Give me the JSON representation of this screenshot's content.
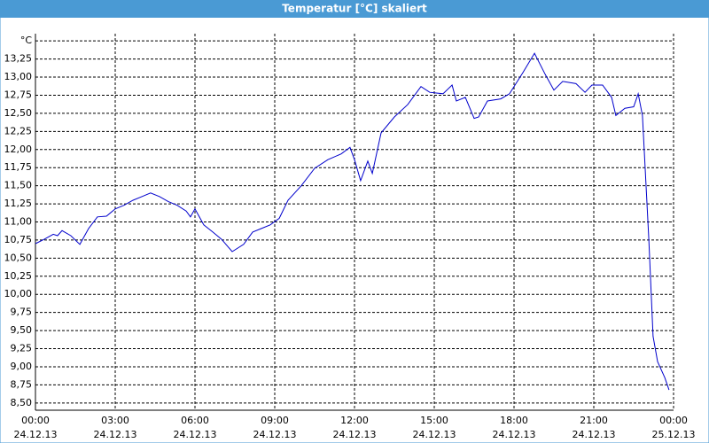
{
  "chart_data": {
    "type": "line",
    "title": "Temperatur [°C] skaliert",
    "xlim": [
      0,
      24
    ],
    "ylim": [
      8.4,
      13.6
    ],
    "xticks": [
      {
        "value": 0,
        "label": "00:00",
        "date": "24.12.13"
      },
      {
        "value": 3,
        "label": "03:00",
        "date": "24.12.13"
      },
      {
        "value": 6,
        "label": "06:00",
        "date": "24.12.13"
      },
      {
        "value": 9,
        "label": "09:00",
        "date": "24.12.13"
      },
      {
        "value": 12,
        "label": "12:00",
        "date": "24.12.13"
      },
      {
        "value": 15,
        "label": "15:00",
        "date": "24.12.13"
      },
      {
        "value": 18,
        "label": "18:00",
        "date": "24.12.13"
      },
      {
        "value": 21,
        "label": "21:00",
        "date": "24.12.13"
      },
      {
        "value": 24,
        "label": "00:00",
        "date": "25.12.13"
      }
    ],
    "yticks": [
      {
        "value": 8.5,
        "label": "8,50"
      },
      {
        "value": 8.75,
        "label": "8,75"
      },
      {
        "value": 9,
        "label": "9,00"
      },
      {
        "value": 9.25,
        "label": "9,25"
      },
      {
        "value": 9.5,
        "label": "9,50"
      },
      {
        "value": 9.75,
        "label": "9,75"
      },
      {
        "value": 10,
        "label": "10,00"
      },
      {
        "value": 10.25,
        "label": "10,25"
      },
      {
        "value": 10.5,
        "label": "10,50"
      },
      {
        "value": 10.75,
        "label": "10,75"
      },
      {
        "value": 11,
        "label": "11,00"
      },
      {
        "value": 11.25,
        "label": "11,25"
      },
      {
        "value": 11.5,
        "label": "11,50"
      },
      {
        "value": 11.75,
        "label": "11,75"
      },
      {
        "value": 12,
        "label": "12,00"
      },
      {
        "value": 12.25,
        "label": "12,25"
      },
      {
        "value": 12.5,
        "label": "12,50"
      },
      {
        "value": 12.75,
        "label": "12,75"
      },
      {
        "value": 13,
        "label": "13,00"
      },
      {
        "value": 13.25,
        "label": "13,25"
      },
      {
        "value": 13.5,
        "label": "°C"
      }
    ],
    "grid": true,
    "series": [
      {
        "color": "#0000cc",
        "x": [
          0,
          0.33,
          0.67,
          0.83,
          1,
          1.33,
          1.67,
          2,
          2.33,
          2.67,
          3,
          3.33,
          3.67,
          4,
          4.33,
          4.67,
          5,
          5.33,
          5.67,
          5.83,
          6,
          6.33,
          6.67,
          7,
          7.4,
          7.83,
          8.17,
          8.5,
          8.83,
          9.17,
          9.5,
          10,
          10.5,
          11,
          11.5,
          11.83,
          12,
          12.23,
          12.5,
          12.67,
          13,
          13.5,
          14,
          14.5,
          14.83,
          15.33,
          15.67,
          15.83,
          16.17,
          16.5,
          16.67,
          17,
          17.5,
          17.83,
          18.33,
          18.77,
          19.17,
          19.5,
          19.83,
          20.33,
          20.67,
          20.93,
          21.33,
          21.67,
          21.83,
          22.17,
          22.5,
          22.67,
          22.83,
          23.07,
          23.23,
          23.4,
          23.67,
          23.83
        ],
        "values": [
          10.7,
          10.76,
          10.83,
          10.81,
          10.88,
          10.81,
          10.69,
          10.91,
          11.07,
          11.08,
          11.18,
          11.23,
          11.3,
          11.35,
          11.4,
          11.35,
          11.28,
          11.23,
          11.15,
          11.07,
          11.18,
          10.96,
          10.86,
          10.76,
          10.59,
          10.69,
          10.86,
          10.91,
          10.96,
          11.05,
          11.3,
          11.5,
          11.74,
          11.86,
          11.94,
          12.03,
          11.86,
          11.57,
          11.84,
          11.67,
          12.23,
          12.45,
          12.62,
          12.87,
          12.79,
          12.77,
          12.89,
          12.67,
          12.72,
          12.43,
          12.45,
          12.67,
          12.7,
          12.77,
          13.06,
          13.33,
          13.04,
          12.82,
          12.94,
          12.91,
          12.79,
          12.89,
          12.89,
          12.72,
          12.47,
          12.57,
          12.59,
          12.77,
          12.47,
          10.76,
          9.42,
          9.07,
          8.85,
          8.68
        ]
      }
    ]
  }
}
